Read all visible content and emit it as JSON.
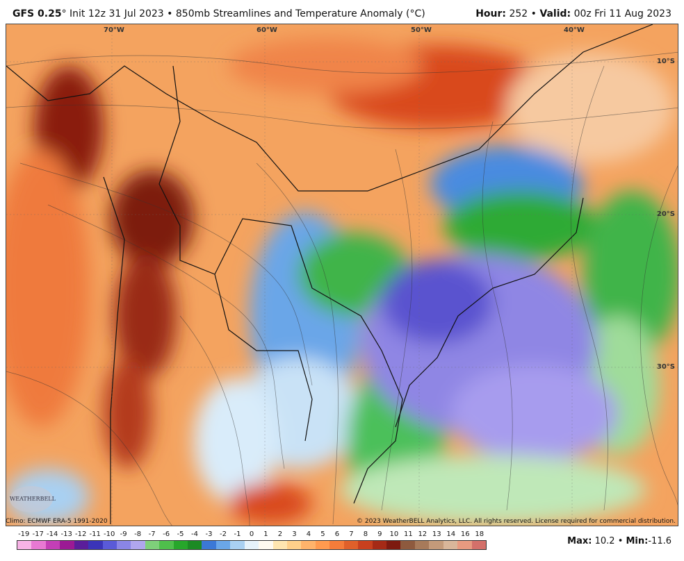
{
  "header": {
    "model": "GFS 0.25",
    "degree": "°",
    "init": "Init 12z 31 Jul 2023",
    "sep": "•",
    "title": "850mb Streamlines and Temperature Anomaly (°C)",
    "hour_label": "Hour:",
    "hour_value": "252",
    "valid_label": "Valid:",
    "valid_value": "00z Fri 11 Aug 2023"
  },
  "map": {
    "lon_labels": [
      "70°W",
      "60°W",
      "50°W",
      "40°W"
    ],
    "lat_labels": [
      "10°S",
      "20°S",
      "30°S"
    ]
  },
  "footer": {
    "climo": "Climo: ECMWF ERA-5 1991-2020",
    "copyright": "© 2023 WeatherBELL Analytics, LLC. All rights reserved. License required for commercial distribution.",
    "logo_text": "WEATHERBELL"
  },
  "colorbar": {
    "labels": [
      "-19",
      "-17",
      "-14",
      "-13",
      "-12",
      "-11",
      "-10",
      "-9",
      "-8",
      "-7",
      "-6",
      "-5",
      "-4",
      "-3",
      "-2",
      "-1",
      "0",
      "1",
      "2",
      "3",
      "4",
      "5",
      "6",
      "7",
      "8",
      "9",
      "10",
      "11",
      "12",
      "13",
      "14",
      "16",
      "18"
    ],
    "colors": [
      "#f7b3e6",
      "#e879d3",
      "#c43fb6",
      "#9b1a94",
      "#5a1e9a",
      "#3b34b8",
      "#5a5ad8",
      "#8a85e6",
      "#b0a6ee",
      "#7ed07a",
      "#4fbf4c",
      "#27a62b",
      "#1c8a24",
      "#3b78d6",
      "#6aa6e8",
      "#a9d0f2",
      "#e6f2fb",
      "#fffaf0",
      "#ffe6b0",
      "#ffd08a",
      "#ffb36b",
      "#ff9a4f",
      "#f57c3a",
      "#e0602a",
      "#c8401e",
      "#a52a16",
      "#7d1a10",
      "#8e5a3e",
      "#a77a5a",
      "#c49a7a",
      "#d9b69a",
      "#e89a80",
      "#d4706a"
    ]
  },
  "stats": {
    "max_label": "Max:",
    "max_value": "10.2",
    "sep": "•",
    "min_label": "Min:",
    "min_value": "-11.6"
  }
}
